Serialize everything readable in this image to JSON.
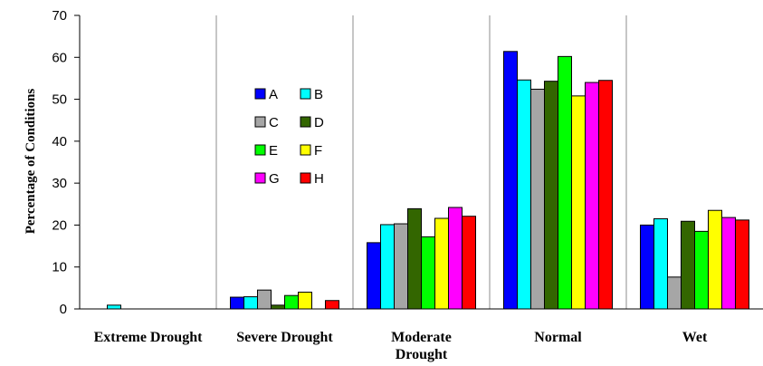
{
  "chart_data": {
    "type": "bar",
    "ylabel": "Percentage of Conditions",
    "xlabel": "",
    "ylim": [
      0,
      70
    ],
    "yticks": [
      0,
      10,
      20,
      30,
      40,
      50,
      60,
      70
    ],
    "grid": false,
    "legend_position": "inside, upper-left of plot area (over Severe Drought group), 2 columns",
    "categories": [
      [
        "Extreme Drought"
      ],
      [
        "Severe Drought"
      ],
      [
        "Moderate",
        "Drought"
      ],
      [
        "Normal"
      ],
      [
        "Wet"
      ]
    ],
    "series": [
      {
        "name": "A",
        "color": "#0000FF",
        "values": [
          0.0,
          2.8,
          15.8,
          61.4,
          20.0
        ]
      },
      {
        "name": "B",
        "color": "#00FFFF",
        "values": [
          0.9,
          2.9,
          20.1,
          54.6,
          21.5
        ]
      },
      {
        "name": "C",
        "color": "#A6A6A6",
        "values": [
          0.0,
          4.5,
          20.3,
          52.4,
          7.6
        ]
      },
      {
        "name": "D",
        "color": "#336600",
        "values": [
          0.0,
          0.9,
          23.9,
          54.3,
          20.9
        ]
      },
      {
        "name": "E",
        "color": "#00FF00",
        "values": [
          0.0,
          3.2,
          17.2,
          60.2,
          18.5
        ]
      },
      {
        "name": "F",
        "color": "#FFFF00",
        "values": [
          0.0,
          4.0,
          21.6,
          50.8,
          23.5
        ]
      },
      {
        "name": "G",
        "color": "#FF00FF",
        "values": [
          0.0,
          0.0,
          24.2,
          54.0,
          21.8
        ]
      },
      {
        "name": "H",
        "color": "#FF0000",
        "values": [
          0.0,
          2.0,
          22.1,
          54.5,
          21.2
        ]
      }
    ]
  }
}
